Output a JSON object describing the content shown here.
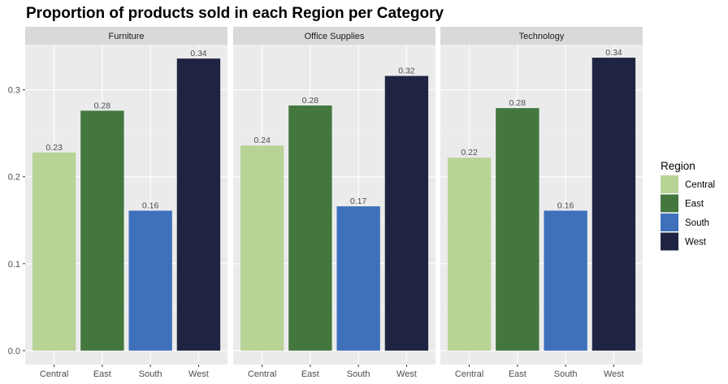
{
  "chart_data": {
    "type": "bar",
    "title": "Proportion of products sold in each Region per Category",
    "xlabel": "",
    "ylabel": "",
    "ylim": [
      -0.016,
      0.352
    ],
    "yticks": [
      0.0,
      0.1,
      0.2,
      0.3
    ],
    "ytick_labels": [
      "0.0",
      "0.1",
      "0.2",
      "0.3"
    ],
    "categories": [
      "Central",
      "East",
      "South",
      "West"
    ],
    "grid": true,
    "legend_position": "right",
    "legend": {
      "title": "Region",
      "items": [
        {
          "label": "Central",
          "color": "#b8d396"
        },
        {
          "label": "East",
          "color": "#43773e"
        },
        {
          "label": "South",
          "color": "#3e70bb"
        },
        {
          "label": "West",
          "color": "#202443"
        }
      ]
    },
    "facets": [
      {
        "name": "Furniture",
        "values": [
          0.228,
          0.276,
          0.161,
          0.336
        ],
        "labels": [
          "0.23",
          "0.28",
          "0.16",
          "0.34"
        ]
      },
      {
        "name": "Office Supplies",
        "values": [
          0.236,
          0.282,
          0.166,
          0.316
        ],
        "labels": [
          "0.24",
          "0.28",
          "0.17",
          "0.32"
        ]
      },
      {
        "name": "Technology",
        "values": [
          0.222,
          0.279,
          0.161,
          0.337
        ],
        "labels": [
          "0.22",
          "0.28",
          "0.16",
          "0.34"
        ]
      }
    ]
  }
}
